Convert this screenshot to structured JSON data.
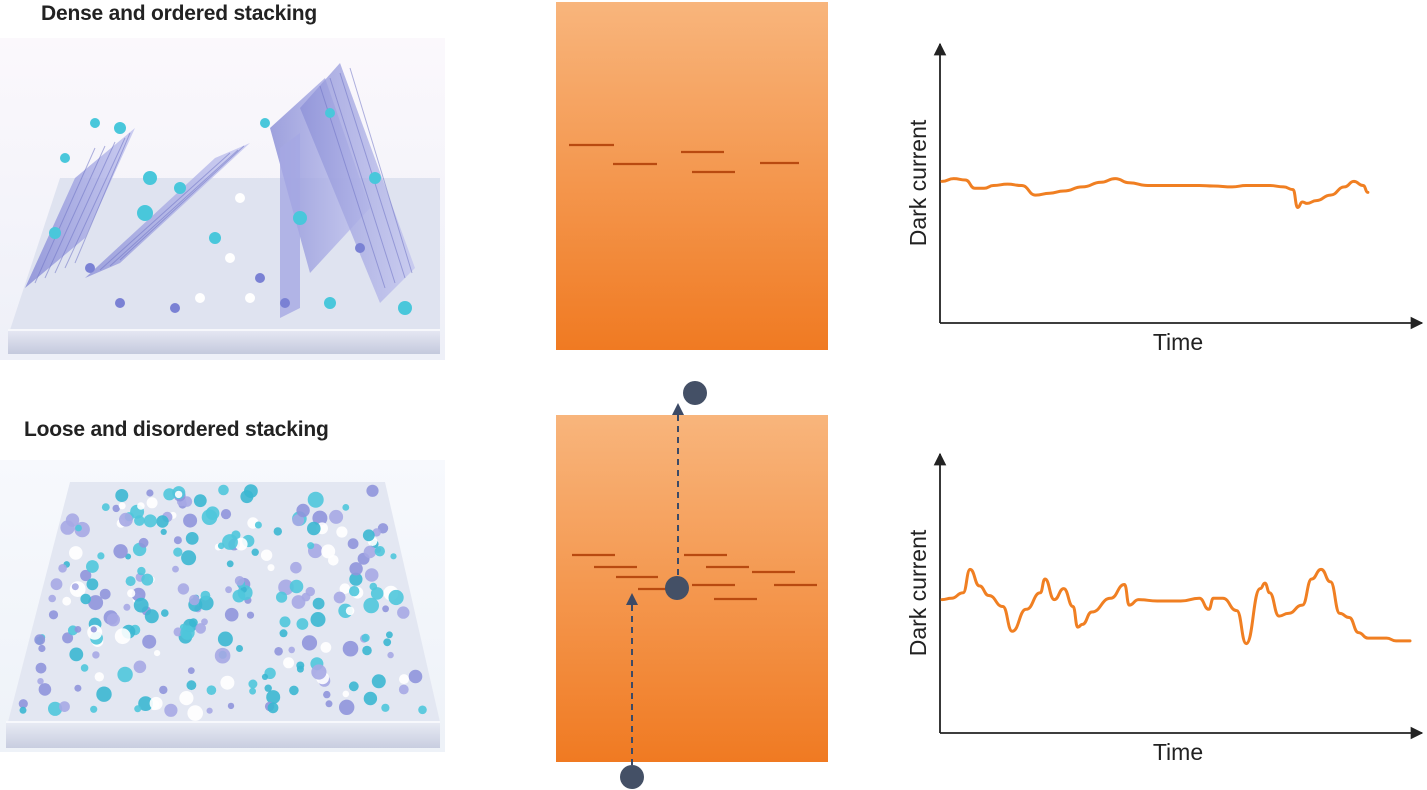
{
  "top": {
    "heading": "Dense and ordered stacking"
  },
  "bottom": {
    "heading": "Loose and disordered stacking"
  },
  "chart_data": [
    {
      "type": "line",
      "title": "",
      "xlabel": "Time",
      "ylabel": "Dark current",
      "grid": false,
      "ylim": [
        0,
        10
      ],
      "xlim": [
        0,
        100
      ],
      "series": [
        {
          "color": "#f07f22",
          "x": [
            0,
            2.5,
            5,
            7,
            9,
            11,
            14,
            17,
            20,
            23,
            26,
            30,
            34,
            37,
            40,
            44,
            48,
            52,
            55,
            58,
            62,
            65,
            70,
            73,
            75,
            76,
            77,
            78,
            80,
            83,
            86,
            88,
            90,
            91
          ],
          "values": [
            5.15,
            5.25,
            5.2,
            4.9,
            4.9,
            5.0,
            5.05,
            5.0,
            4.65,
            4.72,
            4.8,
            4.95,
            5.12,
            5.25,
            5.1,
            5.0,
            5.0,
            5.0,
            5.0,
            4.98,
            4.95,
            5.0,
            5.0,
            4.95,
            4.85,
            4.2,
            4.4,
            4.35,
            4.45,
            4.65,
            4.95,
            5.15,
            5.0,
            4.75
          ]
        }
      ]
    },
    {
      "type": "line",
      "title": "",
      "xlabel": "Time",
      "ylabel": "Dark current",
      "grid": false,
      "ylim": [
        0,
        10
      ],
      "xlim": [
        0,
        100
      ],
      "series": [
        {
          "color": "#f07f22",
          "x": [
            0,
            2,
            4.5,
            6,
            8,
            10,
            13,
            15,
            18,
            21,
            22,
            24,
            26,
            28,
            29,
            30,
            32,
            36,
            39,
            40,
            42,
            46,
            51,
            55,
            57,
            58,
            60,
            63,
            65,
            68,
            69,
            70,
            72,
            74,
            77,
            79,
            81,
            83,
            85,
            87,
            89,
            91,
            93,
            95,
            97,
            100
          ],
          "values": [
            4.85,
            4.9,
            5.1,
            5.95,
            5.35,
            5.0,
            4.6,
            3.7,
            4.5,
            5.1,
            5.6,
            4.85,
            5.25,
            4.6,
            3.85,
            3.95,
            4.4,
            4.9,
            5.4,
            4.65,
            4.85,
            4.8,
            4.8,
            4.9,
            4.5,
            4.9,
            4.9,
            4.45,
            3.25,
            5.25,
            5.45,
            5.1,
            4.25,
            4.35,
            4.65,
            5.6,
            5.95,
            5.5,
            4.35,
            4.2,
            3.65,
            3.45,
            3.45,
            3.45,
            3.35,
            3.35
          ]
        }
      ]
    }
  ]
}
